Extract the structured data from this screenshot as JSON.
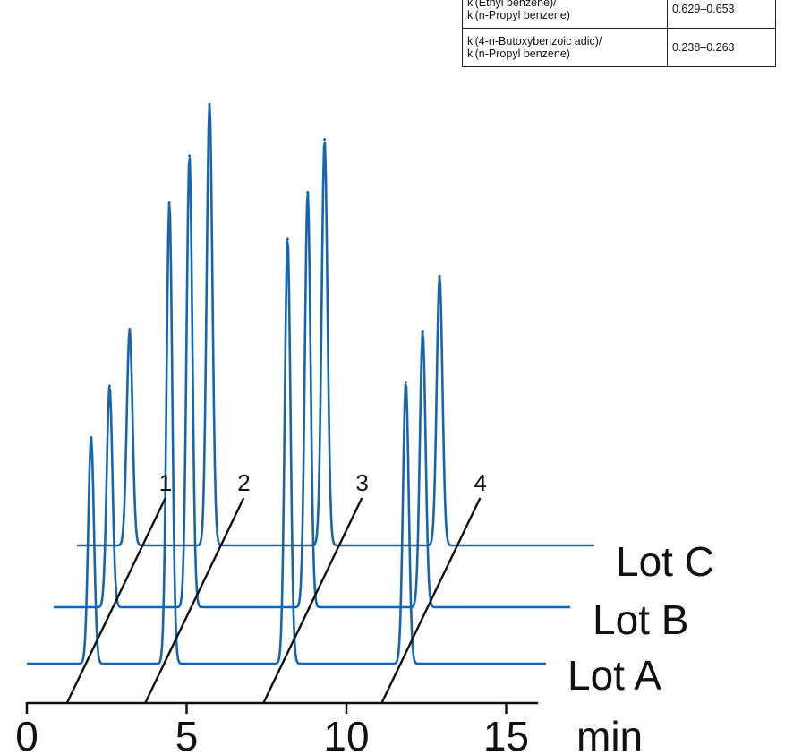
{
  "chart_data": {
    "type": "line",
    "title": "",
    "xlabel": "min",
    "x_ticks": [
      0,
      5,
      10,
      15
    ],
    "xlim": [
      0,
      16
    ],
    "peak_labels": [
      "1",
      "2",
      "3",
      "4"
    ],
    "series": [
      {
        "name": "Lot A",
        "color": "#1565b0",
        "peaks": [
          {
            "t": 1.45,
            "h": 0.49
          },
          {
            "t": 3.9,
            "h": 1.0
          },
          {
            "t": 7.6,
            "h": 0.92
          },
          {
            "t": 11.3,
            "h": 0.61
          }
        ]
      },
      {
        "name": "Lot B",
        "color": "#1565b0",
        "peaks": [
          {
            "t": 1.3,
            "h": 0.49
          },
          {
            "t": 3.8,
            "h": 1.0
          },
          {
            "t": 7.5,
            "h": 0.92
          },
          {
            "t": 11.1,
            "h": 0.61
          }
        ]
      },
      {
        "name": "Lot C",
        "color": "#1565b0",
        "peaks": [
          {
            "t": 1.2,
            "h": 0.49
          },
          {
            "t": 3.7,
            "h": 1.0
          },
          {
            "t": 7.3,
            "h": 0.92
          },
          {
            "t": 10.9,
            "h": 0.61
          }
        ]
      }
    ]
  },
  "table": {
    "rows": [
      {
        "label_line1": "k'(Ethyl benzene)/",
        "label_line2": "k'(n-Propyl benzene)",
        "value": "0.629–0.653"
      },
      {
        "label_line1": "k'(4-n-Butoxybenzoic adic)/",
        "label_line2": "k'(n-Propyl benzene)",
        "value": "0.238–0.263"
      }
    ]
  }
}
